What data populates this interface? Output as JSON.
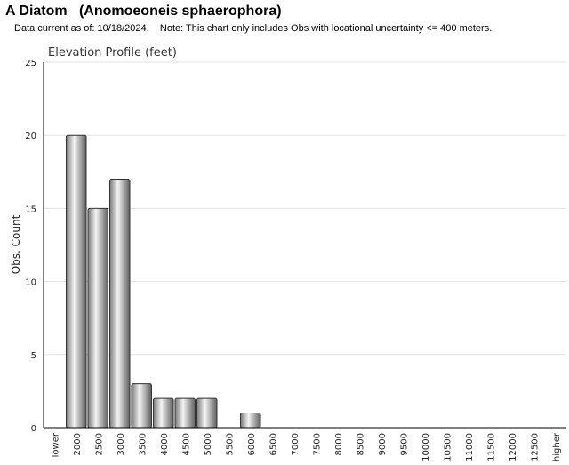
{
  "header": {
    "title": "A Diatom   (Anomoeoneis sphaerophora)",
    "subtitle": "Data current as of: 10/18/2024.    Note: This chart only includes Obs with locational uncertainty <= 400 meters."
  },
  "chart_data": {
    "type": "bar",
    "title": "Elevation Profile (feet)",
    "xlabel": "",
    "ylabel": "Obs. Count",
    "ylim": [
      0,
      25
    ],
    "yticks": [
      0,
      5,
      10,
      15,
      20,
      25
    ],
    "grid": true,
    "categories": [
      "lower",
      "2000",
      "2500",
      "3000",
      "3500",
      "4000",
      "4500",
      "5000",
      "5500",
      "6000",
      "6500",
      "7000",
      "7500",
      "8000",
      "8500",
      "9000",
      "9500",
      "10000",
      "10500",
      "11000",
      "11500",
      "12000",
      "12500",
      "higher"
    ],
    "values": [
      0,
      20,
      15,
      17,
      3,
      2,
      2,
      2,
      0,
      1,
      0,
      0,
      0,
      0,
      0,
      0,
      0,
      0,
      0,
      0,
      0,
      0,
      0,
      0
    ],
    "colors": {
      "bar_light": "#f2f2f2",
      "bar_dark": "#6e6e6e",
      "bar_stroke": "#333333",
      "grid": "#e3e3e3",
      "axis": "#000000"
    }
  }
}
